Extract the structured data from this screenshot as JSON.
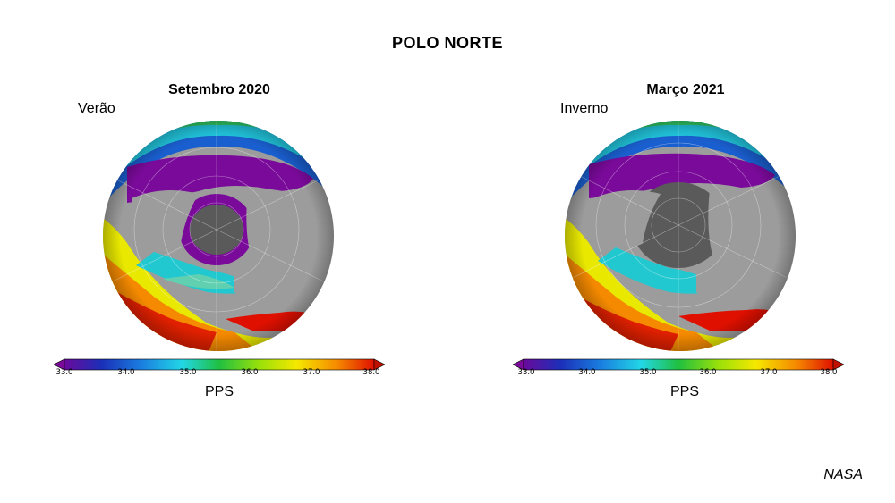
{
  "title": "POLO NORTE",
  "credit": "NASA",
  "colorbar": {
    "ticks": [
      "33.0",
      "34.0",
      "35.0",
      "36.0",
      "37.0",
      "38.0"
    ],
    "label": "PPS",
    "min": 33.0,
    "max": 38.0,
    "colors": [
      "#6a0a9c",
      "#1b2fb8",
      "#1aa8e8",
      "#22d6d6",
      "#20c040",
      "#bde60a",
      "#f5e800",
      "#f58a00",
      "#e01000"
    ]
  },
  "panels": [
    {
      "title": "Setembro 2020",
      "season": "Verão"
    },
    {
      "title": "Março 2021",
      "season": "Inverno"
    }
  ]
}
